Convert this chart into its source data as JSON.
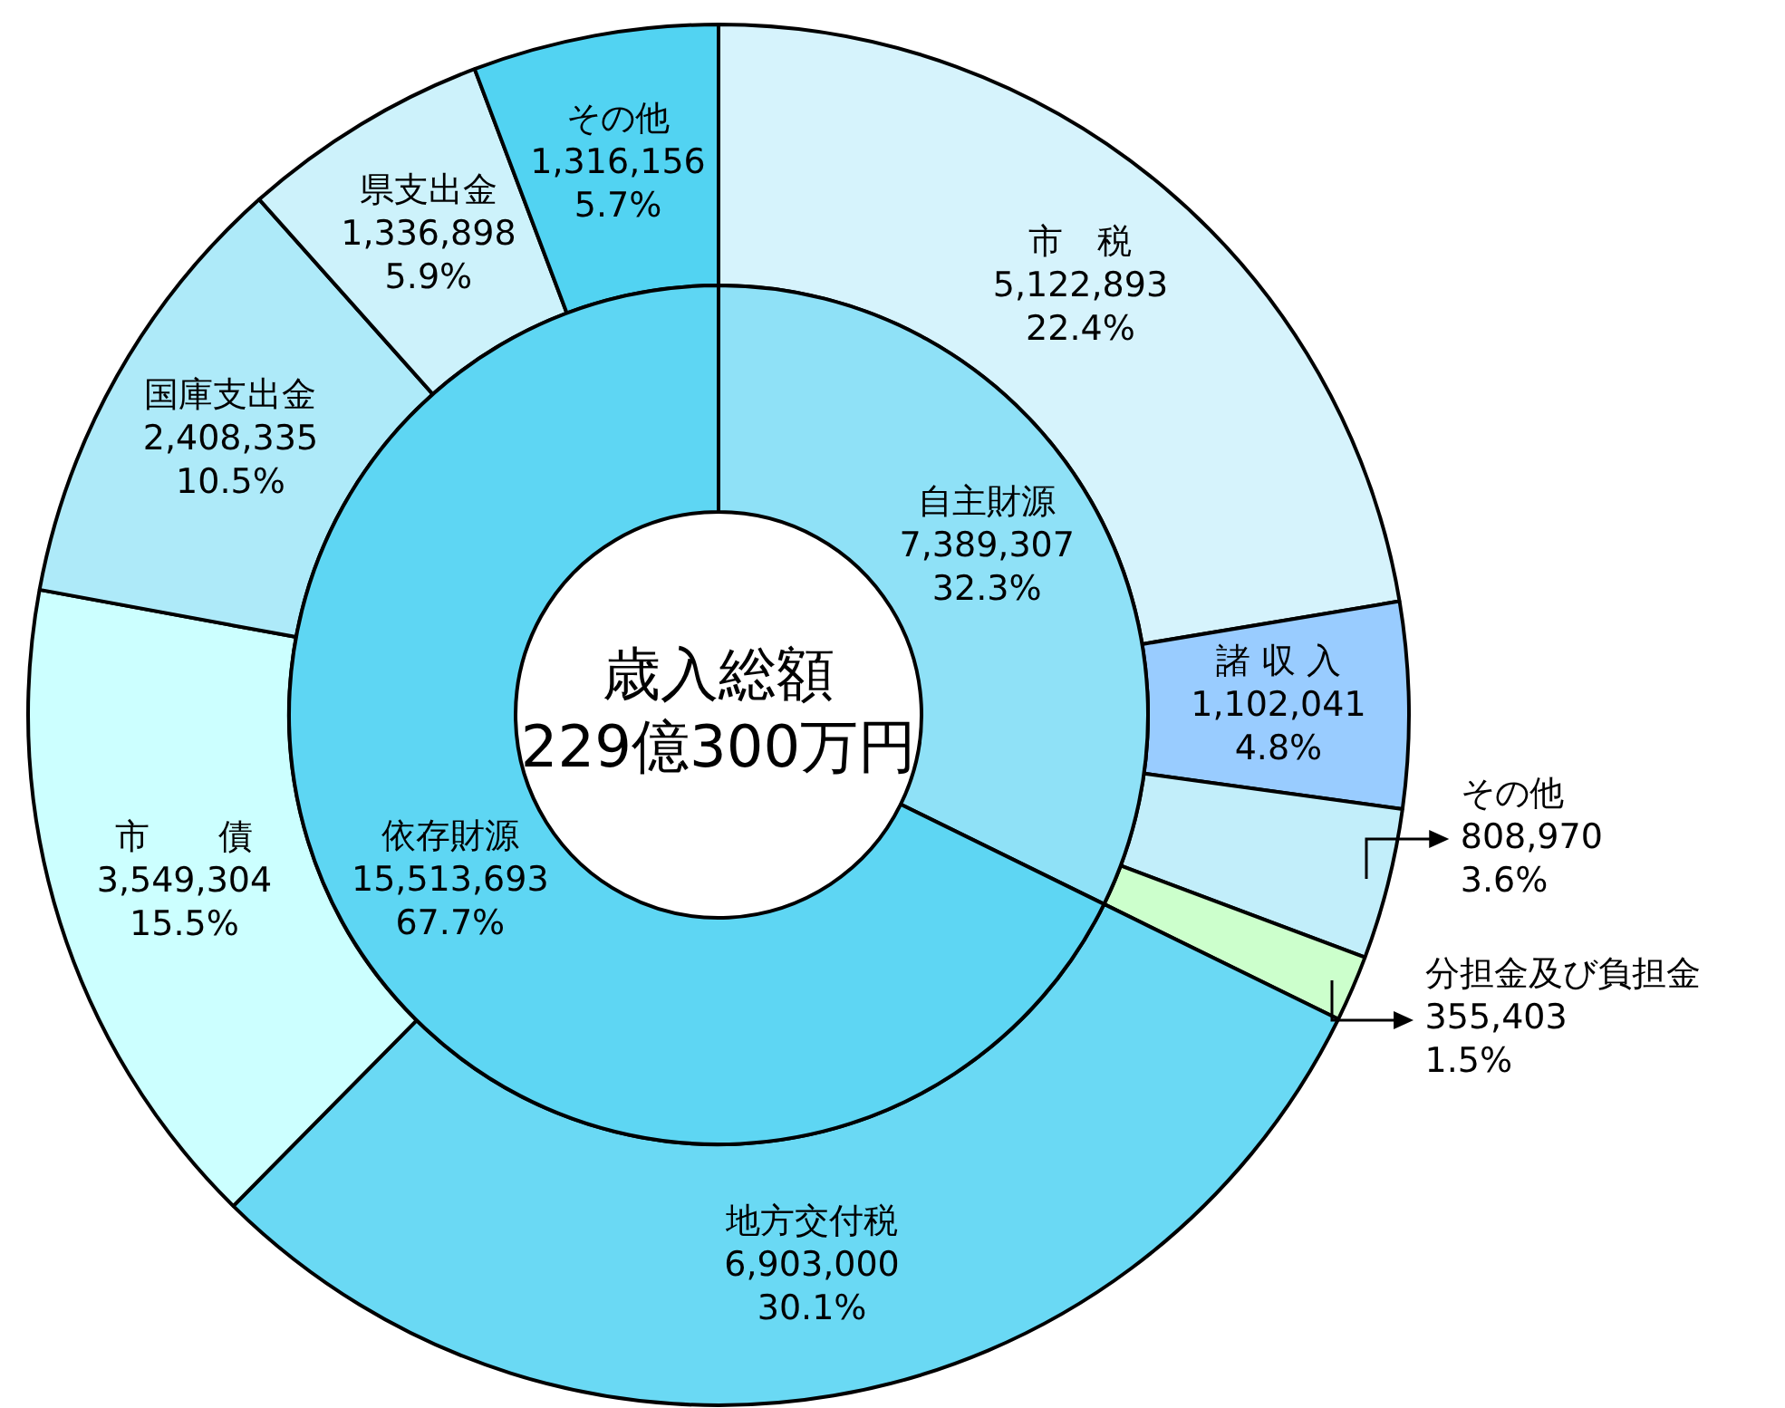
{
  "chart_data": [
    {
      "type": "donut",
      "categories": [
        "市　税",
        "諸 収 入",
        "その他",
        "分担金及び負担金",
        "地方交付税",
        "市　　債",
        "国庫支出金",
        "県支出金",
        "その他"
      ],
      "values": [
        5122893,
        1102041,
        808970,
        355403,
        6903000,
        3549304,
        2408335,
        1336898,
        1316156
      ],
      "colors": [
        "#d6f3fc",
        "#99ccff",
        "#c2eefa",
        "#ccffcc",
        "#6ad9f4",
        "#ccffff",
        "#aeeaf9",
        "#cdf2fb",
        "#52d3f2"
      ],
      "value_labels": [
        "5,122,893\n22.4%",
        "1,102,041\n4.8%",
        "808,970\n3.6%",
        "355,403\n1.5%",
        "6,903,000\n30.1%",
        "3,549,304\n15.5%",
        "2,408,335\n10.5%",
        "1,336,898\n5.9%",
        "1,316,156\n5.7%"
      ]
    },
    {
      "type": "donut",
      "title": "歳入総額\n229億300万円",
      "categories": [
        "自主財源",
        "依存財源"
      ],
      "values": [
        7389307,
        15513693
      ],
      "colors": [
        "#8fe1f7",
        "#5ed6f3"
      ],
      "value_labels": [
        "7,389,307\n32.3%",
        "15,513,693\n67.7%"
      ]
    }
  ]
}
